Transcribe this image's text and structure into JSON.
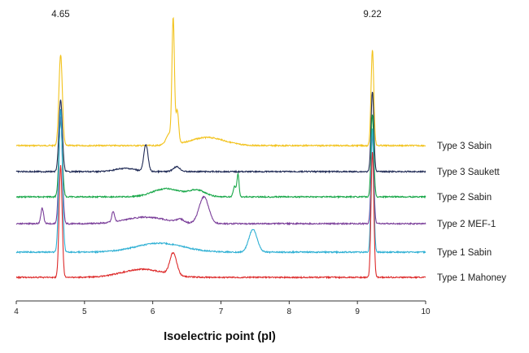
{
  "chart_data": {
    "type": "line",
    "title": "",
    "xlabel": "Isoelectric point (pI)",
    "ylabel": "",
    "xlim": [
      4,
      10
    ],
    "x_ticks": [
      "4",
      "5",
      "6",
      "7",
      "8",
      "9",
      "10"
    ],
    "grid": false,
    "legend": "inline-right",
    "annotations": [
      {
        "text": "4.65",
        "x": 4.65
      },
      {
        "text": "9.22",
        "x": 9.22
      }
    ],
    "series": [
      {
        "name": "Type 3 Sabin",
        "color": "#f2c21b",
        "baseline": 0,
        "peaks": [
          {
            "x": 4.65,
            "height": 112,
            "width": 0.025
          },
          {
            "x": 6.3,
            "height": 148,
            "width": 0.018
          },
          {
            "x": 6.36,
            "height": 40,
            "width": 0.02
          },
          {
            "x": 6.25,
            "height": 14,
            "width": 0.05
          },
          {
            "x": 6.8,
            "height": 10,
            "width": 0.25
          },
          {
            "x": 9.22,
            "height": 118,
            "width": 0.02
          }
        ]
      },
      {
        "name": "Type 3 Saukett",
        "color": "#1f2a55",
        "baseline": 0,
        "peaks": [
          {
            "x": 4.65,
            "height": 88,
            "width": 0.025
          },
          {
            "x": 5.9,
            "height": 33,
            "width": 0.03
          },
          {
            "x": 5.6,
            "height": 4,
            "width": 0.15
          },
          {
            "x": 6.35,
            "height": 6,
            "width": 0.05
          },
          {
            "x": 9.22,
            "height": 99,
            "width": 0.02
          }
        ]
      },
      {
        "name": "Type 2 Sabin",
        "color": "#1aa84a",
        "baseline": 0,
        "peaks": [
          {
            "x": 4.65,
            "height": 94,
            "width": 0.025
          },
          {
            "x": 6.2,
            "height": 10,
            "width": 0.2
          },
          {
            "x": 6.65,
            "height": 8,
            "width": 0.12
          },
          {
            "x": 7.2,
            "height": 13,
            "width": 0.02
          },
          {
            "x": 7.25,
            "height": 28,
            "width": 0.015
          },
          {
            "x": 9.22,
            "height": 102,
            "width": 0.02
          }
        ]
      },
      {
        "name": "Type 2 MEF-1",
        "color": "#7b3f9a",
        "baseline": 0,
        "peaks": [
          {
            "x": 4.38,
            "height": 19,
            "width": 0.02
          },
          {
            "x": 4.65,
            "height": 132,
            "width": 0.025
          },
          {
            "x": 5.42,
            "height": 13,
            "width": 0.02
          },
          {
            "x": 5.9,
            "height": 8,
            "width": 0.3
          },
          {
            "x": 6.4,
            "height": 4,
            "width": 0.05
          },
          {
            "x": 6.75,
            "height": 33,
            "width": 0.07
          },
          {
            "x": 9.22,
            "height": 110,
            "width": 0.02
          }
        ]
      },
      {
        "name": "Type 1 Sabin",
        "color": "#2fb0d4",
        "baseline": 0,
        "peaks": [
          {
            "x": 4.65,
            "height": 176,
            "width": 0.025
          },
          {
            "x": 6.1,
            "height": 11,
            "width": 0.35
          },
          {
            "x": 7.47,
            "height": 28,
            "width": 0.06
          },
          {
            "x": 9.22,
            "height": 152,
            "width": 0.02
          }
        ]
      },
      {
        "name": "Type 1 Mahoney",
        "color": "#dd2b2b",
        "baseline": 0,
        "peaks": [
          {
            "x": 4.65,
            "height": 138,
            "width": 0.022
          },
          {
            "x": 5.85,
            "height": 10,
            "width": 0.3
          },
          {
            "x": 6.3,
            "height": 27,
            "width": 0.05
          },
          {
            "x": 9.22,
            "height": 155,
            "width": 0.02
          }
        ]
      }
    ]
  }
}
